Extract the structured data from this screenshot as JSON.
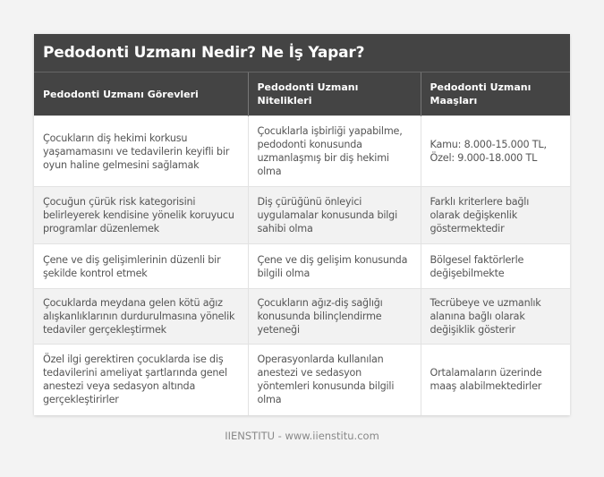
{
  "title": "Pedodonti Uzmanı Nedir? Ne İş Yapar?",
  "headers": [
    "Pedodonti Uzmanı Görevleri",
    "Pedodonti Uzmanı Nitelikleri",
    "Pedodonti Uzmanı Maaşları"
  ],
  "rows": [
    [
      "Çocukların diş hekimi korkusu yaşamamasını ve tedavilerin keyifli bir oyun haline gelmesini sağlamak",
      "Çocuklarla işbirliği yapabilme, pedodonti konusunda uzmanlaşmış bir diş hekimi olma",
      "Kamu: 8.000-15.000 TL, Özel: 9.000-18.000 TL"
    ],
    [
      "Çocuğun çürük risk kategorisini belirleyerek kendisine yönelik koruyucu programlar düzenlemek",
      "Diş çürüğünü önleyici uygulamalar konusunda bilgi sahibi olma",
      "Farklı kriterlere bağlı olarak değişkenlik göstermektedir"
    ],
    [
      "Çene ve diş gelişimlerinin düzenli bir şekilde kontrol etmek",
      "Çene ve diş gelişim konusunda bilgili olma",
      "Bölgesel faktörlerle değişebilmekte"
    ],
    [
      "Çocuklarda meydana gelen kötü ağız alışkanlıklarının durdurulmasına yönelik tedaviler gerçekleştirmek",
      "Çocukların ağız-diş sağlığı konusunda bilinçlendirme yeteneği",
      "Tecrübeye ve uzmanlık alanına bağlı olarak değişiklik gösterir"
    ],
    [
      "Özel ilgi gerektiren çocuklarda ise diş tedavilerini ameliyat şartlarında genel anestezi veya sedasyon altında gerçekleştirirler",
      "Operasyonlarda kullanılan anestezi ve sedasyon yöntemleri konusunda bilgili olma",
      "Ortalamaların üzerinde maaş alabilmektedirler"
    ]
  ],
  "footer": "IIENSTITU - www.iienstitu.com"
}
